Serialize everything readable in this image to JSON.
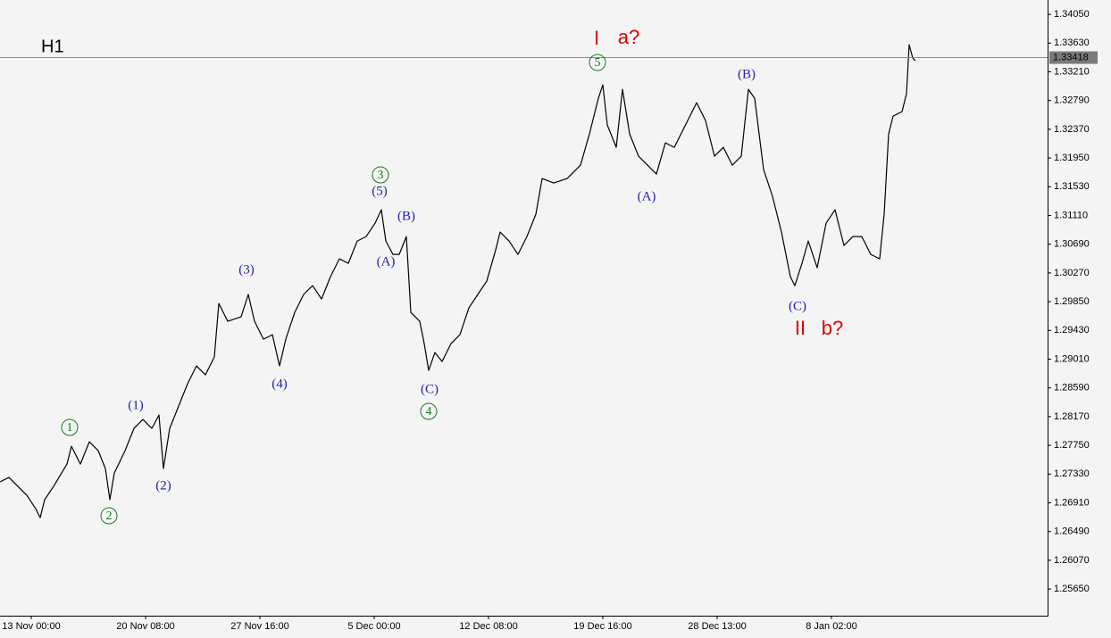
{
  "chart_data": {
    "type": "line",
    "timeframe": "H1",
    "color": "#000000",
    "x": [
      -35,
      -25,
      -15,
      -5,
      5,
      10,
      15,
      25,
      40,
      45,
      55,
      65,
      75,
      83,
      88,
      93,
      105,
      115,
      125,
      135,
      143,
      148,
      155,
      165,
      175,
      185,
      195,
      205,
      210,
      220,
      235,
      243,
      250,
      260,
      270,
      278,
      285,
      295,
      305,
      315,
      325,
      335,
      345,
      355,
      365,
      375,
      385,
      392,
      397,
      405,
      412,
      420,
      425,
      435,
      440,
      445,
      452,
      460,
      470,
      480,
      490,
      500,
      510,
      520,
      525,
      535,
      545,
      555,
      565,
      572,
      585,
      600,
      615,
      625,
      635,
      640,
      645,
      655,
      662,
      670,
      680,
      690,
      700,
      710,
      720,
      730,
      740,
      745,
      755,
      765,
      775,
      785,
      795,
      803,
      810,
      815,
      820,
      830,
      840,
      850,
      855,
      863,
      870,
      880,
      890,
      900,
      910,
      920,
      930,
      940,
      950,
      955,
      960,
      965,
      975,
      980,
      983,
      987,
      990
    ],
    "values": [
      1.27216,
      1.27281,
      1.2715,
      1.2702,
      1.26824,
      1.26694,
      1.26955,
      1.2715,
      1.27476,
      1.27737,
      1.27476,
      1.27802,
      1.27672,
      1.27411,
      1.26955,
      1.27346,
      1.27672,
      1.27998,
      1.28128,
      1.27998,
      1.28194,
      1.27411,
      1.27998,
      1.28324,
      1.2865,
      1.28911,
      1.28781,
      1.29042,
      1.29824,
      1.29563,
      1.29628,
      1.29955,
      1.29563,
      1.29302,
      1.29368,
      1.28911,
      1.29302,
      1.29694,
      1.29955,
      1.30085,
      1.29889,
      1.30215,
      1.30476,
      1.30411,
      1.30737,
      1.30802,
      1.30998,
      1.31194,
      1.30737,
      1.30541,
      1.30541,
      1.30802,
      1.29694,
      1.29563,
      1.29237,
      1.28846,
      1.29107,
      1.28976,
      1.29237,
      1.29368,
      1.29759,
      1.29955,
      1.3015,
      1.30607,
      1.30868,
      1.30737,
      1.30541,
      1.30802,
      1.31128,
      1.3165,
      1.31585,
      1.3165,
      1.31846,
      1.32302,
      1.32824,
      1.3302,
      1.32433,
      1.32107,
      1.32954,
      1.32302,
      1.31976,
      1.31846,
      1.31715,
      1.32172,
      1.32107,
      1.32367,
      1.32628,
      1.32759,
      1.32498,
      1.31976,
      1.32107,
      1.31846,
      1.31976,
      1.32954,
      1.32824,
      1.32302,
      1.31781,
      1.31389,
      1.30868,
      1.30215,
      1.30085,
      1.30411,
      1.30737,
      1.30346,
      1.30998,
      1.31194,
      1.30672,
      1.30802,
      1.30802,
      1.30541,
      1.30476,
      1.31128,
      1.32302,
      1.32563,
      1.32628,
      1.32889,
      1.33607,
      1.33411,
      1.33372
    ],
    "current_price": 1.33418,
    "xlim": [
      -35,
      1138
    ],
    "xticks": [
      {
        "value": 0,
        "label": "13 Nov 00:00"
      },
      {
        "value": 128,
        "label": "20 Nov 08:00"
      },
      {
        "value": 256,
        "label": "27 Nov 16:00"
      },
      {
        "value": 384,
        "label": "5 Dec 00:00"
      },
      {
        "value": 512,
        "label": "12 Dec 08:00"
      },
      {
        "value": 640,
        "label": "19 Dec 16:00"
      },
      {
        "value": 768,
        "label": "28 Dec 13:00"
      },
      {
        "value": 896,
        "label": "8 Jan 02:00"
      }
    ],
    "ylim": [
      1.2526,
      1.3426
    ],
    "yticks": [
      {
        "value": 1.3405,
        "label": "1.34050"
      },
      {
        "value": 1.3363,
        "label": "1.33630"
      },
      {
        "value": 1.3321,
        "label": "1.33210"
      },
      {
        "value": 1.3279,
        "label": "1.32790"
      },
      {
        "value": 1.3237,
        "label": "1.32370"
      },
      {
        "value": 1.3195,
        "label": "1.31950"
      },
      {
        "value": 1.3153,
        "label": "1.31530"
      },
      {
        "value": 1.3111,
        "label": "1.31110"
      },
      {
        "value": 1.3069,
        "label": "1.30690"
      },
      {
        "value": 1.3027,
        "label": "1.30270"
      },
      {
        "value": 1.2985,
        "label": "1.29850"
      },
      {
        "value": 1.2943,
        "label": "1.29430"
      },
      {
        "value": 1.2901,
        "label": "1.29010"
      },
      {
        "value": 1.2859,
        "label": "1.28590"
      },
      {
        "value": 1.2817,
        "label": "1.28170"
      },
      {
        "value": 1.2775,
        "label": "1.27750"
      },
      {
        "value": 1.2733,
        "label": "1.27330"
      },
      {
        "value": 1.2691,
        "label": "1.26910"
      },
      {
        "value": 1.2649,
        "label": "1.26490"
      },
      {
        "value": 1.2607,
        "label": "1.26070"
      },
      {
        "value": 1.2565,
        "label": "1.25650"
      }
    ],
    "annotations": [
      {
        "text": "1",
        "color": "#1a7a1a",
        "circled": true
      },
      {
        "text": "2",
        "color": "#1a7a1a",
        "circled": true
      },
      {
        "text": "3",
        "color": "#1a7a1a",
        "circled": true
      },
      {
        "text": "4",
        "color": "#1a7a1a",
        "circled": true
      },
      {
        "text": "5",
        "color": "#1a7a1a",
        "circled": true
      },
      {
        "text": "(1)",
        "color": "#2222aa",
        "circled": false
      },
      {
        "text": "(2)",
        "color": "#2222aa",
        "circled": false
      },
      {
        "text": "(3)",
        "color": "#2222aa",
        "circled": false
      },
      {
        "text": "(4)",
        "color": "#2222aa",
        "circled": false
      },
      {
        "text": "(5)",
        "color": "#2222aa",
        "circled": false
      },
      {
        "text": "(A)",
        "color": "#2222aa",
        "circled": false
      },
      {
        "text": "(B)",
        "color": "#2222aa",
        "circled": false
      },
      {
        "text": "(C)",
        "color": "#2222aa",
        "circled": false
      },
      {
        "text": "(A)",
        "color": "#2222aa",
        "circled": false
      },
      {
        "text": "(B)",
        "color": "#2222aa",
        "circled": false
      },
      {
        "text": "(C)",
        "color": "#2222aa",
        "circled": false
      },
      {
        "text": "I",
        "color": "#e00000",
        "circled": false
      },
      {
        "text": "a?",
        "color": "#e00000",
        "circled": false
      },
      {
        "text": "II",
        "color": "#e00000",
        "circled": false
      },
      {
        "text": "b?",
        "color": "#e00000",
        "circled": false
      }
    ]
  }
}
